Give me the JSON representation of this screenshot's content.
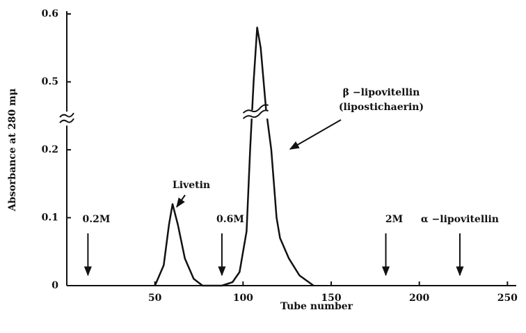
{
  "chart_data": {
    "type": "line",
    "x_label": "Tube number",
    "y_label": "Absorbance at 280 mμ",
    "xlim": [
      0,
      255
    ],
    "xticks": [
      50,
      100,
      150,
      200,
      250
    ],
    "ylim": [
      0,
      0.6
    ],
    "yticks": [
      0,
      0.1,
      0.2,
      0.5,
      0.6
    ],
    "axis_break": [
      0.25,
      0.45
    ],
    "series": [
      {
        "color": "#111111",
        "x": [
          50,
          55,
          58,
          60,
          63,
          67,
          72,
          77,
          88,
          94,
          98,
          102,
          104,
          106,
          108,
          110,
          113,
          116,
          119,
          121,
          126,
          132,
          140
        ],
        "values": [
          0,
          0.03,
          0.09,
          0.12,
          0.09,
          0.04,
          0.01,
          0,
          0,
          0.005,
          0.02,
          0.08,
          0.2,
          0.5,
          0.58,
          0.55,
          0.46,
          0.2,
          0.1,
          0.07,
          0.04,
          0.015,
          0
        ]
      }
    ],
    "eluent_arrows": [
      {
        "text": "0.2M",
        "x": 12
      },
      {
        "text": "0.6M",
        "x": 88
      },
      {
        "text": "2M",
        "x": 181
      },
      {
        "text": "α −lipovitellin",
        "x": 223
      }
    ],
    "peak_labels": [
      "Livetin",
      "β −lipovitellin",
      "(lipostichaerin)"
    ]
  }
}
